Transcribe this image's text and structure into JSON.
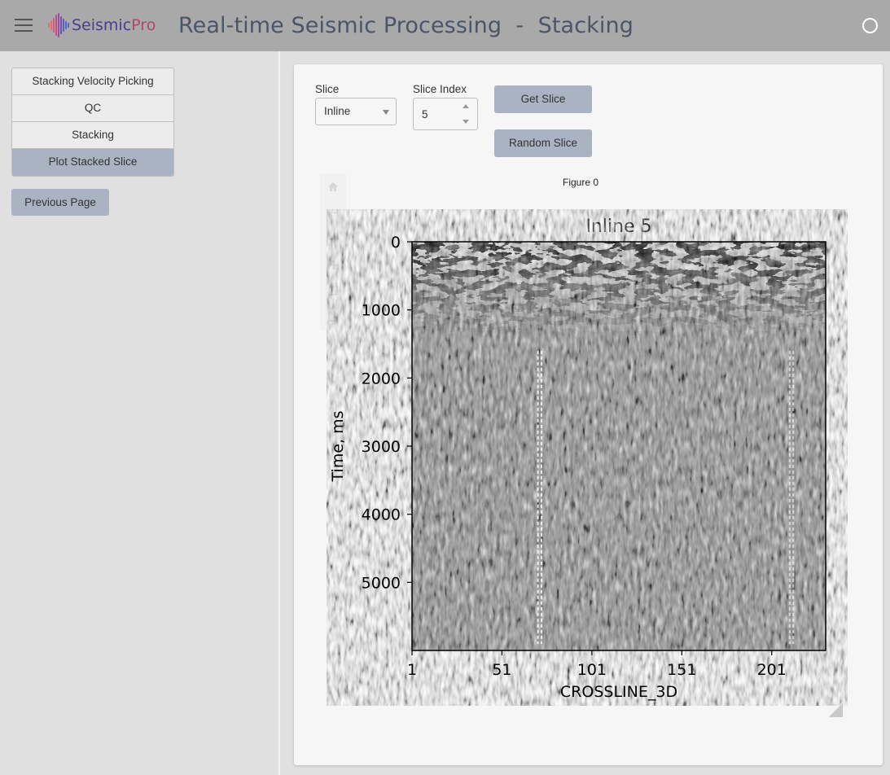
{
  "header": {
    "app_title": "Real-time Seismic Processing  -  Stacking",
    "logo_part_a": "Seismic",
    "logo_part_b": "Pro"
  },
  "sidebar": {
    "items": [
      {
        "label": "Stacking Velocity Picking",
        "active": false
      },
      {
        "label": "QC",
        "active": false
      },
      {
        "label": "Stacking",
        "active": false
      },
      {
        "label": "Plot Stacked Slice",
        "active": true
      }
    ],
    "previous_label": "Previous Page"
  },
  "controls": {
    "slice_label": "Slice",
    "slice_value": "Inline",
    "index_label": "Slice Index",
    "index_value": "5",
    "get_slice_label": "Get Slice",
    "random_slice_label": "Random Slice"
  },
  "figure": {
    "label": "Figure 0",
    "toolbar_icons": [
      "home-icon",
      "back-arrow-icon",
      "forward-arrow-icon",
      "pan-icon",
      "zoom-rect-icon",
      "save-icon"
    ]
  },
  "colors": {
    "header_bg": "#a9a9a9",
    "accent": "#aab3c2",
    "sidebar_bg": "#e0e0e0",
    "card_bg": "#f6f6f6"
  },
  "chart_data": {
    "type": "heatmap",
    "title": "Inline 5",
    "xlabel": "CROSSLINE_3D",
    "ylabel": "Time, ms",
    "x_ticks": [
      1,
      51,
      101,
      151,
      201
    ],
    "y_ticks": [
      0,
      1000,
      2000,
      3000,
      4000,
      5000
    ],
    "xlim": [
      1,
      231
    ],
    "ylim": [
      6000,
      0
    ],
    "colormap": "gray",
    "grid": false
  }
}
